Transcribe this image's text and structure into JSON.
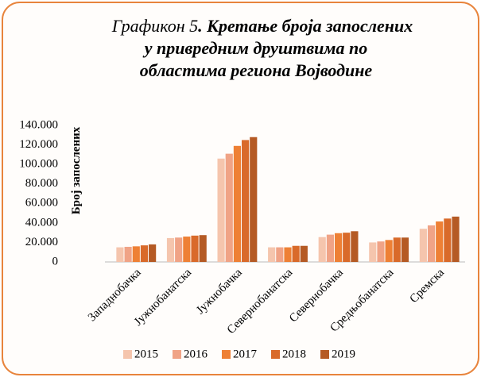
{
  "chart_data": {
    "type": "bar",
    "title": {
      "number": "Графикон 5",
      "lines": [
        ". Кретање броја запослених",
        "у привредним друштвима по",
        "областима региона Војводине"
      ]
    },
    "y_label": "Број запослених",
    "categories": [
      "Западнобачка",
      "Јужнобанатска",
      "Јужнобачка",
      "Севернобанатска",
      "Севернобачка",
      "Средњобанатска",
      "Сремска"
    ],
    "series": [
      {
        "name": "2015",
        "color": "#f5c5ad",
        "values": [
          15000,
          24500,
          106000,
          15000,
          25500,
          20000,
          34000
        ]
      },
      {
        "name": "2016",
        "color": "#f0a386",
        "values": [
          15500,
          25000,
          111000,
          15000,
          28000,
          21000,
          37500
        ]
      },
      {
        "name": "2017",
        "color": "#ee8035",
        "values": [
          16000,
          26000,
          119000,
          15000,
          29500,
          22500,
          41500
        ]
      },
      {
        "name": "2018",
        "color": "#d96a2a",
        "values": [
          17000,
          27000,
          125000,
          16500,
          30000,
          25000,
          44500
        ]
      },
      {
        "name": "2019",
        "color": "#b55a24",
        "values": [
          18000,
          27500,
          128000,
          16500,
          31500,
          25000,
          46500
        ]
      }
    ],
    "ylim": [
      0,
      140000
    ],
    "yticks": [
      0,
      {
        "value": 20000,
        "label": "20.000"
      },
      {
        "value": 40000,
        "label": "40.000"
      },
      {
        "value": 60000,
        "label": "60.000"
      },
      {
        "value": 80000,
        "label": "80.000"
      },
      {
        "value": 100000,
        "label": "100.000"
      },
      {
        "value": 120000,
        "label": "120.000"
      },
      {
        "value": 140000,
        "label": "140.000"
      }
    ],
    "legend": "bottom"
  }
}
